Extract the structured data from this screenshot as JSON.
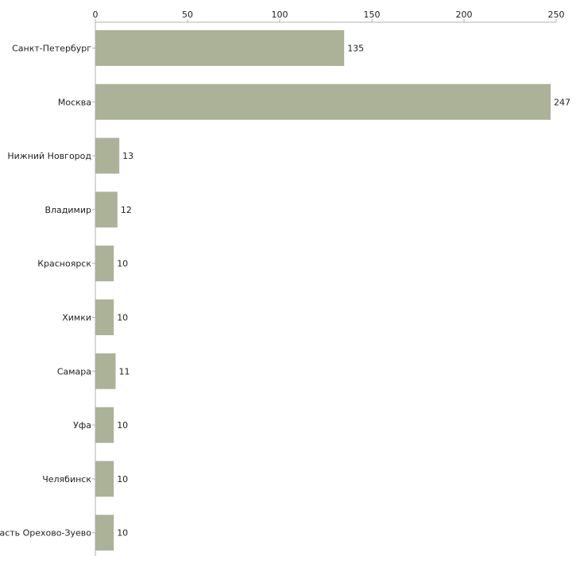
{
  "chart_data": {
    "type": "bar",
    "orientation": "horizontal",
    "title": "",
    "xlabel": "",
    "ylabel": "",
    "xlim": [
      0,
      250
    ],
    "x_ticks": [
      0,
      50,
      100,
      150,
      200,
      250
    ],
    "x_tick_labels": [
      "0",
      "50",
      "100",
      "150",
      "200",
      "250"
    ],
    "x_axis_position": "top",
    "grid": false,
    "legend": "none",
    "bar_color": "#acb298",
    "categories": [
      "Санкт-Петербург",
      "Москва",
      "Нижний Новгород",
      "Владимир",
      "Красноярск",
      "Химки",
      "Самара",
      "Уфа",
      "Челябинск",
      "Московская область Орехово-Зуево"
    ],
    "values": [
      135,
      247,
      13,
      12,
      10,
      10,
      11,
      10,
      10,
      10
    ],
    "data_labels": [
      "135",
      "247",
      "13",
      "12",
      "10",
      "10",
      "11",
      "10",
      "10",
      "10"
    ]
  }
}
